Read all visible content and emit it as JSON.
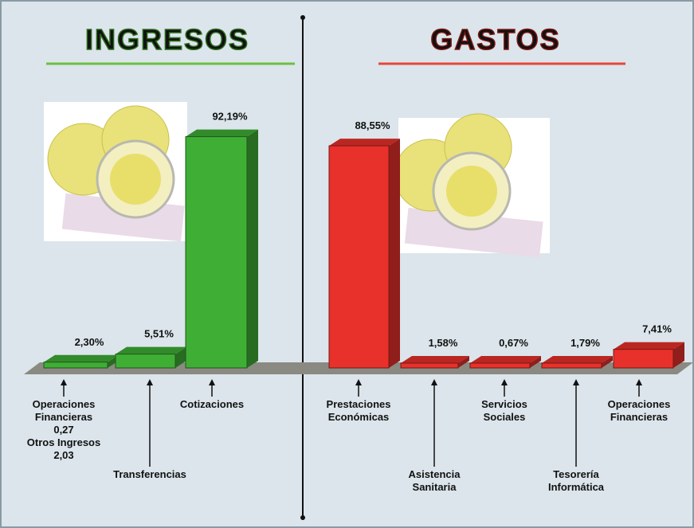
{
  "chart_data": [
    {
      "type": "bar",
      "title": "INGRESOS",
      "color": "#3fae35",
      "categories": [
        "Operaciones\nFinancieras\n0,27\nOtros Ingresos\n2,03",
        "Transferencias",
        "Cotizaciones"
      ],
      "values": [
        2.3,
        5.51,
        92.19
      ],
      "value_labels": [
        "2,30%",
        "5,51%",
        "92,19%"
      ]
    },
    {
      "type": "bar",
      "title": "GASTOS",
      "color": "#e8312a",
      "categories": [
        "Prestaciones\nEconómicas",
        "Asistencia\nSanitaria",
        "Servicios\nSociales",
        "Tesorería\nInformática",
        "Operaciones\nFinancieras"
      ],
      "values": [
        88.55,
        1.58,
        0.67,
        1.79,
        7.41
      ],
      "value_labels": [
        "88,55%",
        "1,58%",
        "0,67%",
        "1,79%",
        "7,41%"
      ]
    }
  ]
}
